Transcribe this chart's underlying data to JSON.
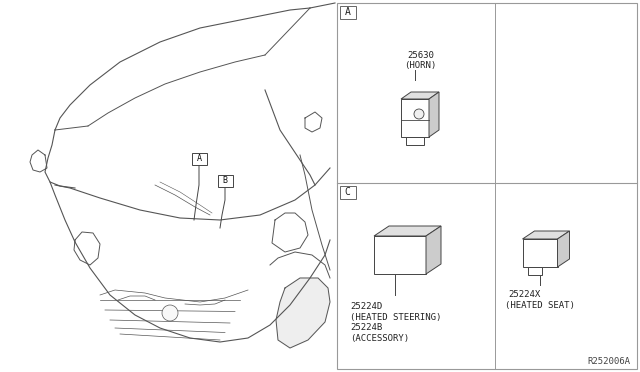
{
  "bg_color": "#ffffff",
  "ref_code": "R252006A",
  "section_A_label": "A",
  "section_C_label": "C",
  "part_horn_num": "25630",
  "part_horn_name": "(HORN)",
  "part_heated_steering_num": "25224D",
  "part_heated_steering_name": "(HEATED STEERING)",
  "part_accessory_num": "25224B",
  "part_accessory_name": "(ACCESSORY)",
  "part_heated_seat_num": "25224X",
  "part_heated_seat_name": "(HEATED SEAT)",
  "callout_A": "A",
  "callout_B": "B",
  "line_color": "#444444",
  "fill_color": "#ffffff",
  "panel_border_color": "#888888",
  "car_line_color": "#555555",
  "relay_face_color": "#ffffff",
  "relay_top_color": "#e0e0e0",
  "relay_side_color": "#cccccc",
  "font_size_label": 6.5,
  "font_size_section": 7.0
}
